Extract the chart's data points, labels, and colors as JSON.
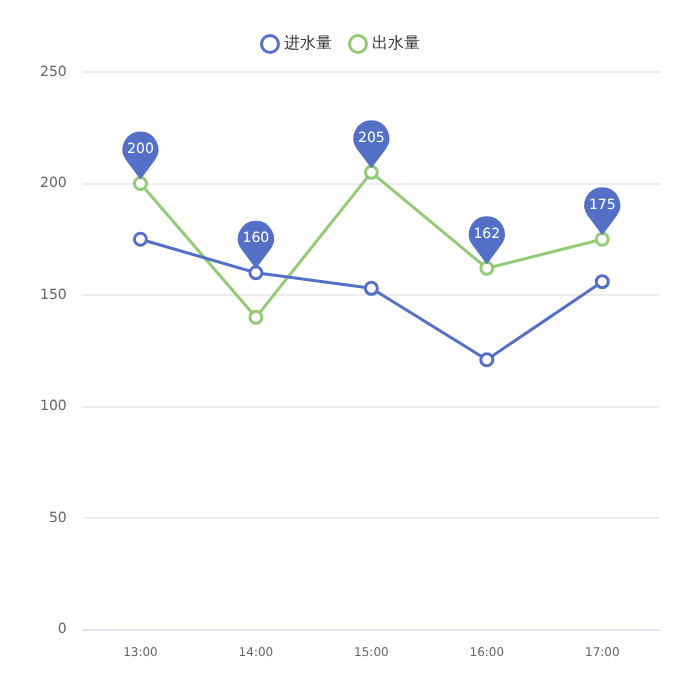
{
  "chart_data": {
    "type": "line",
    "categories": [
      "13:00",
      "14:00",
      "15:00",
      "16:00",
      "17:00"
    ],
    "series": [
      {
        "name": "进水量",
        "color": "#5470c6",
        "values": [
          175,
          160,
          153,
          121,
          156
        ]
      },
      {
        "name": "出水量",
        "color": "#91cc75",
        "values": [
          200,
          140,
          205,
          162,
          175
        ]
      }
    ],
    "ylim": [
      0,
      250
    ],
    "yticks": [
      0,
      50,
      100,
      150,
      200,
      250
    ],
    "grid": "y",
    "legend": "top",
    "marker": "circle",
    "line_style": "solid",
    "annotations": [
      {
        "text": "200",
        "x": "13:00",
        "y": 200
      },
      {
        "text": "160",
        "x": "14:00",
        "y": 160
      },
      {
        "text": "205",
        "x": "15:00",
        "y": 205
      },
      {
        "text": "162",
        "x": "16:00",
        "y": 162
      },
      {
        "text": "175",
        "x": "17:00",
        "y": 175
      }
    ]
  }
}
